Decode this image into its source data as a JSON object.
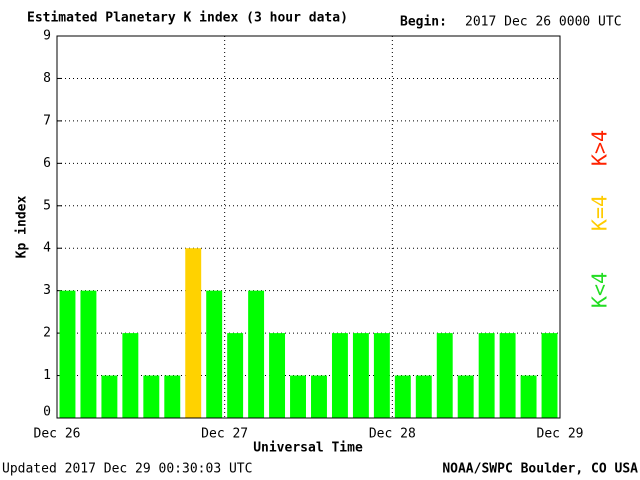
{
  "chart_data": {
    "type": "bar",
    "title": "Estimated Planetary K index (3 hour data)",
    "begin_label": "Begin:",
    "begin": "2017 Dec 26 0000 UTC",
    "ylabel": "Kp index",
    "xlabel": "Universal Time",
    "updated": "Updated 2017 Dec 29 00:30:03 UTC",
    "source": "NOAA/SWPC Boulder, CO USA",
    "x": [
      1.5,
      4.5,
      7.5,
      10.5,
      13.5,
      16.5,
      19.5,
      22.5,
      25.5,
      28.5,
      31.5,
      34.5,
      37.5,
      40.5,
      43.5,
      46.5,
      49.5,
      52.5,
      55.5,
      58.5,
      61.5,
      64.5,
      67.5,
      70.5
    ],
    "values": [
      3,
      3,
      1,
      2,
      1,
      1,
      4,
      3,
      2,
      3,
      2,
      1,
      1,
      2,
      2,
      2,
      1,
      1,
      2,
      1,
      2,
      2,
      1,
      2
    ],
    "colors": [
      "#00ff00",
      "#00ff00",
      "#00ff00",
      "#00ff00",
      "#00ff00",
      "#00ff00",
      "#ffd200",
      "#00ff00",
      "#00ff00",
      "#00ff00",
      "#00ff00",
      "#00ff00",
      "#00ff00",
      "#00ff00",
      "#00ff00",
      "#00ff00",
      "#00ff00",
      "#00ff00",
      "#00ff00",
      "#00ff00",
      "#00ff00",
      "#00ff00",
      "#00ff00",
      "#00ff00"
    ],
    "xlim": [
      0,
      72
    ],
    "xticks": [
      {
        "value": 0,
        "label": "Dec 26"
      },
      {
        "value": 24,
        "label": "Dec 27"
      },
      {
        "value": 48,
        "label": "Dec 28"
      },
      {
        "value": 72,
        "label": "Dec 29"
      }
    ],
    "ylim": [
      0,
      9
    ],
    "yticks": [
      0,
      1,
      2,
      3,
      4,
      5,
      6,
      7,
      8,
      9
    ],
    "grid": true,
    "legend": [
      {
        "label": "K<4",
        "color": "#22dd22"
      },
      {
        "label": "K=4",
        "color": "#ffcc00"
      },
      {
        "label": "K>4",
        "color": "#ff2200"
      }
    ]
  }
}
